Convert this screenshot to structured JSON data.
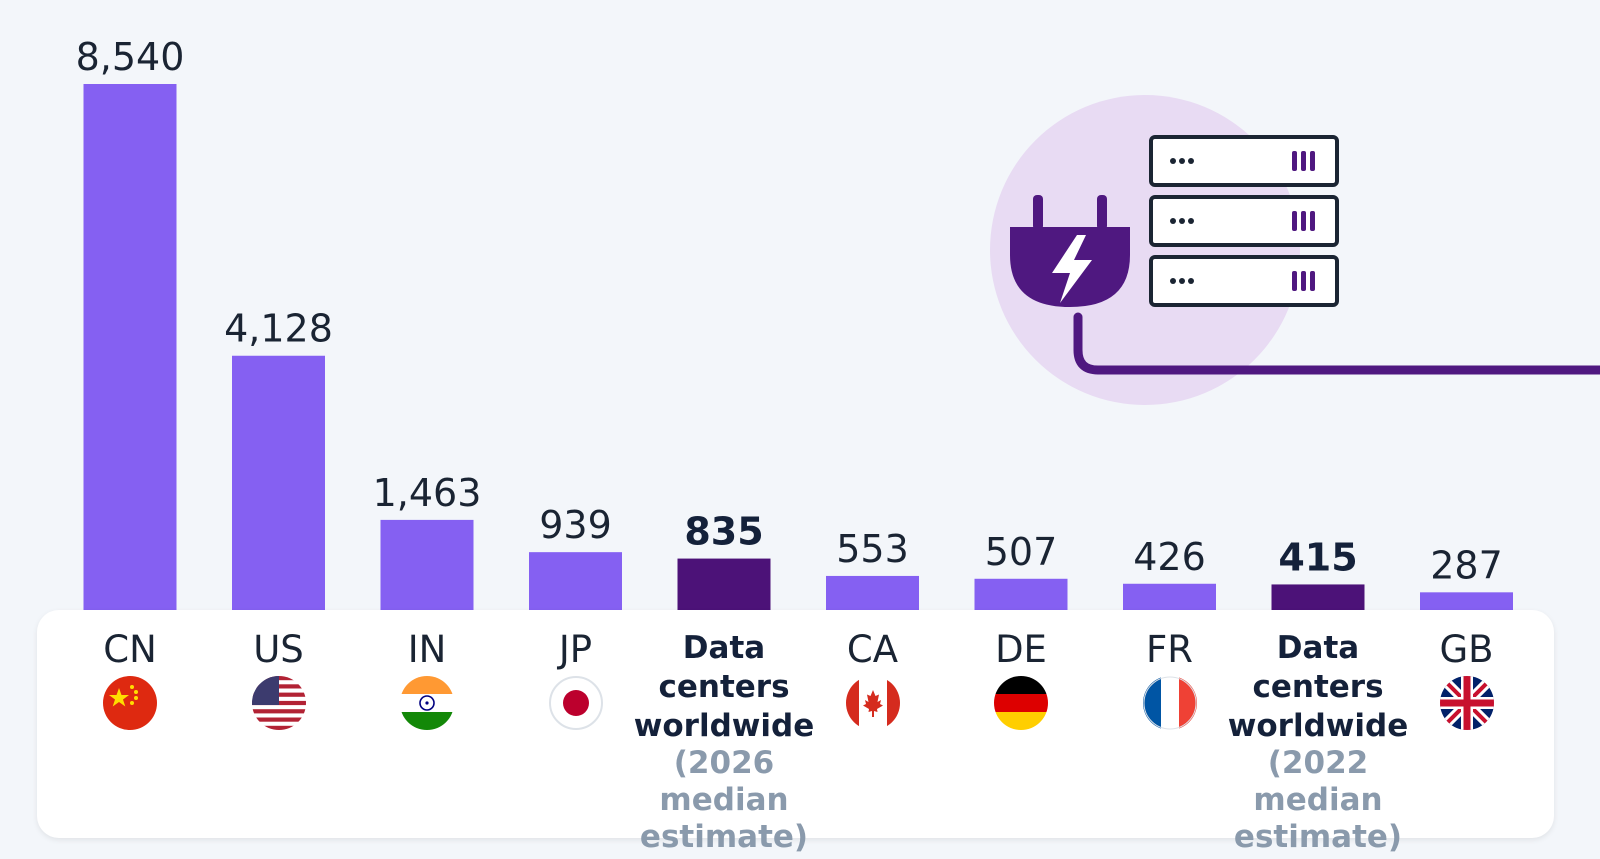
{
  "chart_data": {
    "type": "bar",
    "title": "",
    "xlabel": "",
    "ylabel": "",
    "ylim": [
      0,
      8540
    ],
    "categories": [
      {
        "code": "CN",
        "flag": "china-flag-icon",
        "value": 8540,
        "value_label": "8,540",
        "highlight": false
      },
      {
        "code": "US",
        "flag": "usa-flag-icon",
        "value": 4128,
        "value_label": "4,128",
        "highlight": false
      },
      {
        "code": "IN",
        "flag": "india-flag-icon",
        "value": 1463,
        "value_label": "1,463",
        "highlight": false
      },
      {
        "code": "JP",
        "flag": "japan-flag-icon",
        "value": 939,
        "value_label": "939",
        "highlight": false
      },
      {
        "code": "Data centers worldwide",
        "line1": "Data",
        "line2": "centers",
        "line3": "worldwide",
        "sub1": "(2026 median",
        "sub2": "estimate)",
        "value": 835,
        "value_label": "835",
        "highlight": true
      },
      {
        "code": "CA",
        "flag": "canada-flag-icon",
        "value": 553,
        "value_label": "553",
        "highlight": false
      },
      {
        "code": "DE",
        "flag": "germany-flag-icon",
        "value": 507,
        "value_label": "507",
        "highlight": false
      },
      {
        "code": "FR",
        "flag": "france-flag-icon",
        "value": 426,
        "value_label": "426",
        "highlight": false
      },
      {
        "code": "Data centers worldwide",
        "line1": "Data",
        "line2": "centers",
        "line3": "worldwide",
        "sub1": "(2022 median",
        "sub2": "estimate)",
        "value": 415,
        "value_label": "415",
        "highlight": true
      },
      {
        "code": "GB",
        "flag": "uk-flag-icon",
        "value": 287,
        "value_label": "287",
        "highlight": false
      }
    ],
    "colors": {
      "bar": "#8560f2",
      "highlight": "#4c1278",
      "subtext": "#8a9aac",
      "icon": "#4f1880",
      "icon_bg": "#e8dbf3"
    },
    "grid": false,
    "legend": "none"
  }
}
